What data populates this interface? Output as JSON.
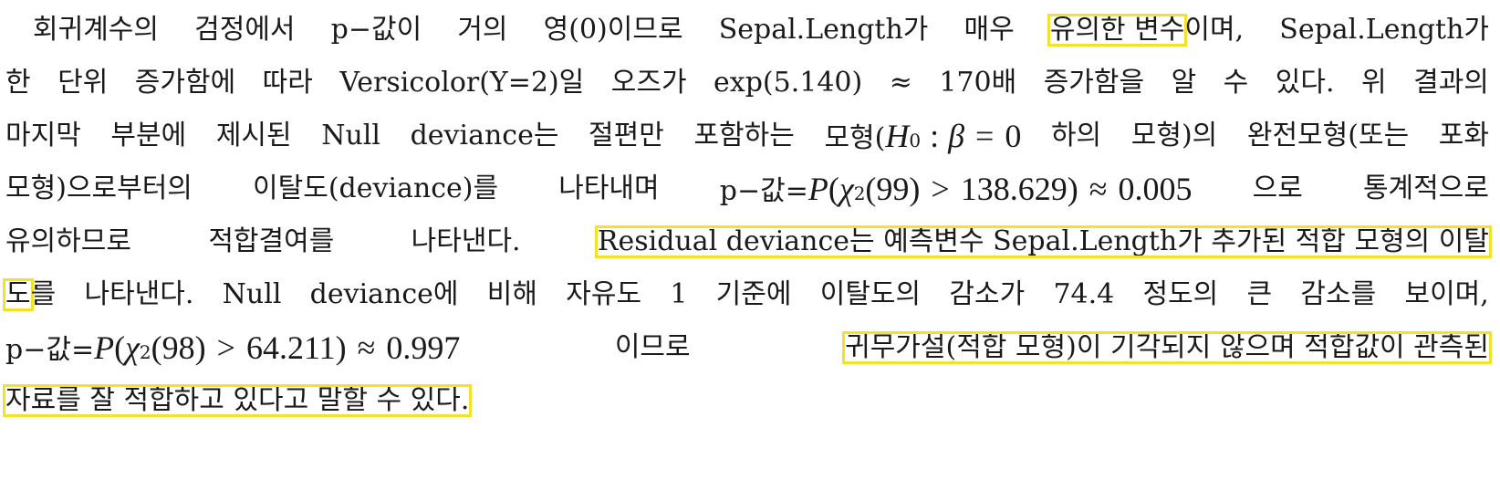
{
  "lines": [
    [
      "회귀계수의",
      "검정에서",
      "p−값이",
      "거의",
      "영(0)이므로",
      "Sepal.Length가",
      "매우",
      "유의한 변수",
      "이며,",
      "Sepal.Length가"
    ],
    [
      "한",
      "단위",
      "증가함에",
      "따라",
      "Versicolor(Y=2)일",
      "오즈가",
      "exp(5.140)",
      "≈",
      "170배",
      "증가함을",
      "알",
      "수",
      "있다.",
      "위",
      "결과의"
    ],
    [
      "마지막",
      "부분에",
      "제시된",
      "Null",
      "deviance는",
      "절편만",
      "포함하는",
      "모형(",
      "H",
      "0",
      ":",
      "β",
      "=",
      "0",
      "하의",
      "모형)의",
      "완전모형(또는",
      "포화"
    ],
    [
      "모형)으로부터의",
      "이탈도(deviance)를",
      "나타내며",
      "p−값=",
      "P",
      "(",
      "χ",
      "2",
      "(99)",
      ">",
      "138.629)",
      "≈",
      "0.005",
      "으로",
      "통계적으로"
    ],
    [
      "유의하므로",
      "적합결여를",
      "나타낸다.",
      "Residual deviance는 예측변수 Sepal.Length가 추가된 적합 모형의 이탈"
    ],
    [
      "도",
      "를",
      "나타낸다.",
      "Null",
      "deviance에",
      "비해",
      "자유도",
      "1",
      "기준에",
      "이탈도의",
      "감소가",
      "74.4",
      "정도의",
      "큰",
      "감소를",
      "보이며,"
    ],
    [
      "p−값=",
      "P",
      "(",
      "χ",
      "2",
      "(98)",
      ">",
      "64.211)",
      "≈",
      "0.997",
      "이므로",
      "귀무가설(적합 모형)이 기각되지 않으며 적합값이 관측된"
    ],
    [
      "자료를 잘 적합하고 있다고 말할 수 있다."
    ]
  ],
  "colors": {
    "highlight": "#f2e22a",
    "text": "#1a1a1a",
    "background": "#ffffff"
  }
}
